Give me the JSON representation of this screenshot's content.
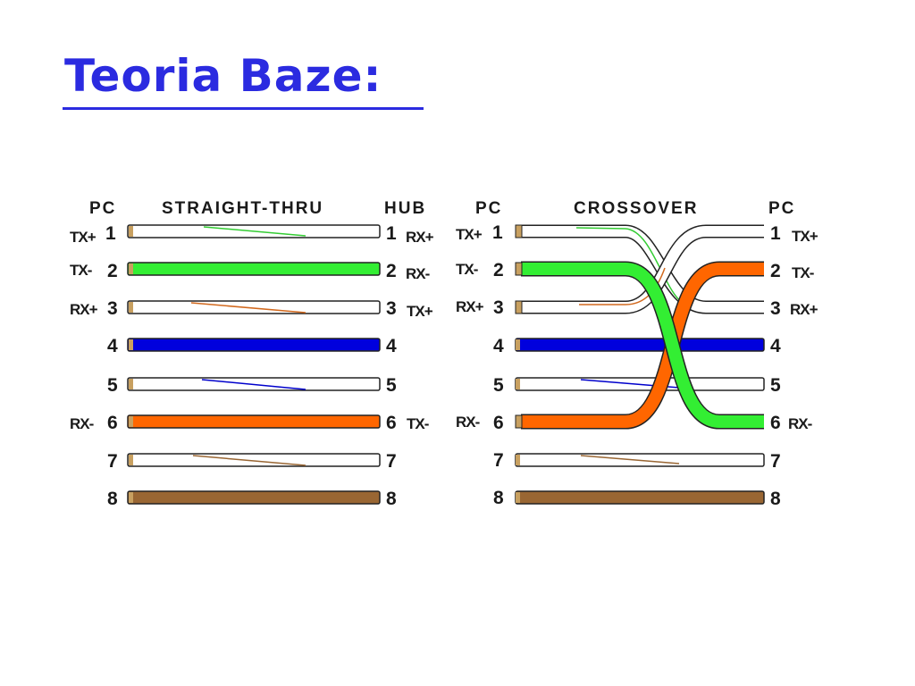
{
  "title": "Teoria Baze:",
  "straight": {
    "left_header": "PC",
    "mid_header": "STRAIGHT-THRU",
    "right_header": "HUB",
    "rows": [
      {
        "left_label": "TX+",
        "pin_left": "1",
        "pin_right": "1",
        "right_label": "RX+",
        "color": "#ffffff",
        "stripe": "#33cc33"
      },
      {
        "left_label": "TX-",
        "pin_left": "2",
        "pin_right": "2",
        "right_label": "RX-",
        "color": "#33ee33",
        "stripe": ""
      },
      {
        "left_label": "RX+",
        "pin_left": "3",
        "pin_right": "3",
        "right_label": "TX+",
        "color": "#ffffff",
        "stripe": "#d2691e"
      },
      {
        "left_label": "",
        "pin_left": "4",
        "pin_right": "4",
        "right_label": "",
        "color": "#0000dd",
        "stripe": ""
      },
      {
        "left_label": "",
        "pin_left": "5",
        "pin_right": "5",
        "right_label": "",
        "color": "#ffffff",
        "stripe": "#0000cc"
      },
      {
        "left_label": "RX-",
        "pin_left": "6",
        "pin_right": "6",
        "right_label": "TX-",
        "color": "#ff6600",
        "stripe": ""
      },
      {
        "left_label": "",
        "pin_left": "7",
        "pin_right": "7",
        "right_label": "",
        "color": "#ffffff",
        "stripe": "#996633"
      },
      {
        "left_label": "",
        "pin_left": "8",
        "pin_right": "8",
        "right_label": "",
        "color": "#996633",
        "stripe": ""
      }
    ]
  },
  "crossover": {
    "left_header": "PC",
    "mid_header": "CROSSOVER",
    "right_header": "PC",
    "rows": [
      {
        "left_label": "TX+",
        "pin_left": "1",
        "pin_right": "1",
        "right_label": "TX+"
      },
      {
        "left_label": "TX-",
        "pin_left": "2",
        "pin_right": "2",
        "right_label": "TX-"
      },
      {
        "left_label": "RX+",
        "pin_left": "3",
        "pin_right": "3",
        "right_label": "RX+"
      },
      {
        "left_label": "",
        "pin_left": "4",
        "pin_right": "4",
        "right_label": ""
      },
      {
        "left_label": "",
        "pin_left": "5",
        "pin_right": "5",
        "right_label": ""
      },
      {
        "left_label": "RX-",
        "pin_left": "6",
        "pin_right": "6",
        "right_label": "RX-"
      },
      {
        "left_label": "",
        "pin_left": "7",
        "pin_right": "7",
        "right_label": ""
      },
      {
        "left_label": "",
        "pin_left": "8",
        "pin_right": "8",
        "right_label": ""
      }
    ]
  },
  "colors": {
    "title": "#2b2be0",
    "green": "#33ee33",
    "orange": "#ff6600",
    "blue": "#0000dd",
    "brown": "#996633",
    "white_wire": "#ffffff"
  }
}
